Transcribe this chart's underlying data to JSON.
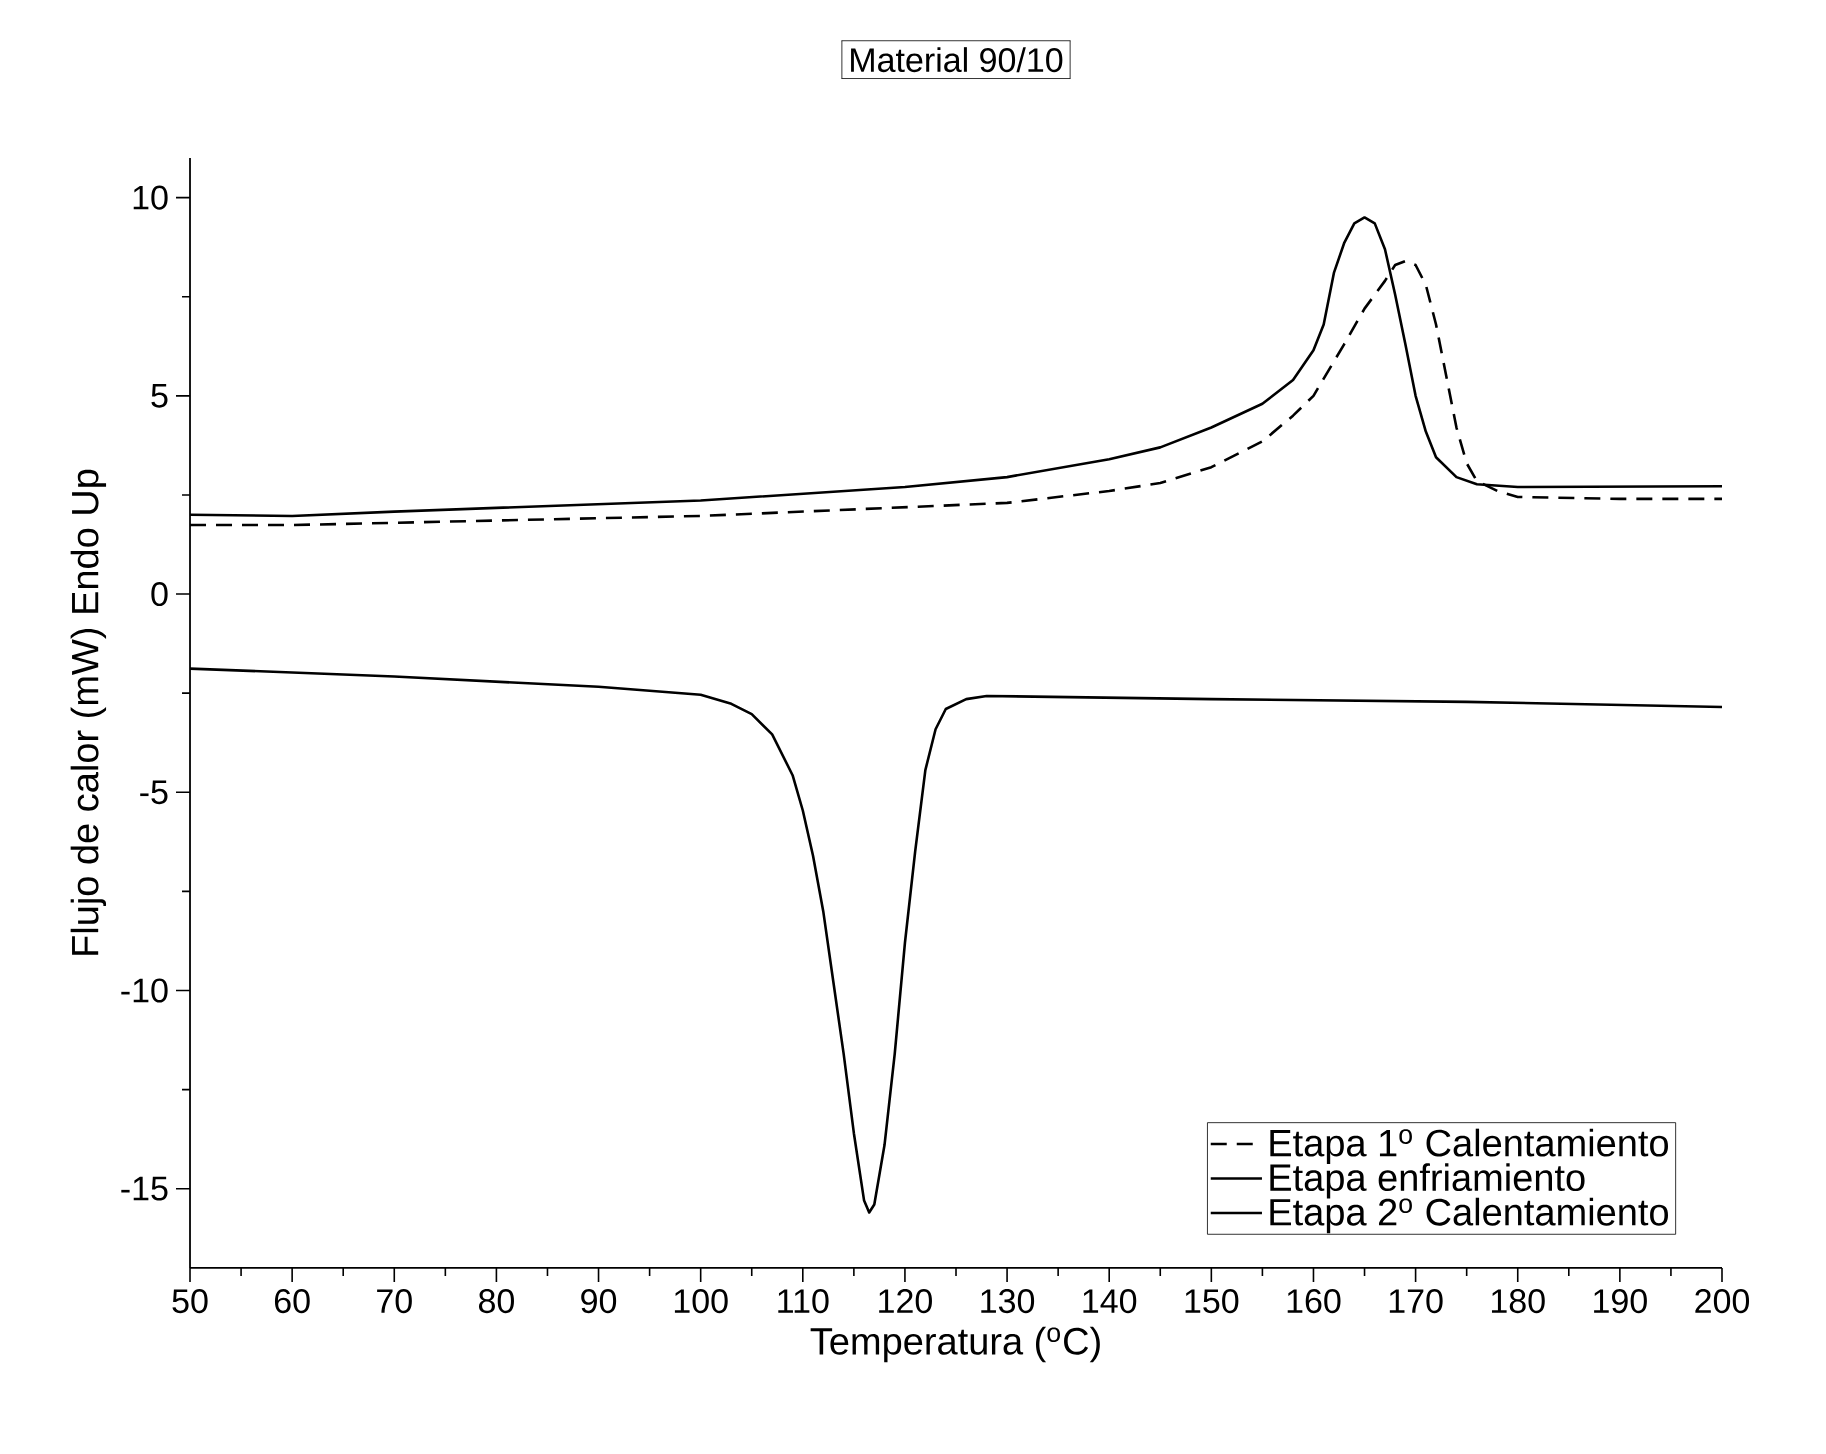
{
  "chart_data": {
    "type": "line",
    "title": "Material 90/10",
    "xlabel": "Temperatura ($^{o}$C)",
    "ylabel": "Flujo de calor (mW) Endo Up",
    "xlim": [
      50,
      200
    ],
    "ylim": [
      -17,
      11
    ],
    "xticks": [
      50,
      60,
      70,
      80,
      90,
      100,
      110,
      120,
      130,
      140,
      150,
      160,
      170,
      180,
      190,
      200
    ],
    "yticks": [
      -15,
      -10,
      -5,
      0,
      5,
      10
    ],
    "grid": false,
    "legend": "bottom right",
    "marker": "none",
    "series": [
      {
        "name": "Etapa 1$^{o}$ Calentamiento",
        "color": "#000000",
        "line_style": "dashed",
        "x": [
          50,
          60,
          100,
          130,
          140,
          145,
          150,
          155,
          158,
          160,
          163,
          165,
          167,
          168,
          169,
          170,
          171,
          172,
          173,
          174,
          175,
          176,
          178,
          180,
          190,
          200
        ],
        "values": [
          1.74,
          1.74,
          1.97,
          2.3,
          2.6,
          2.8,
          3.2,
          3.85,
          4.5,
          5.0,
          6.3,
          7.2,
          7.9,
          8.3,
          8.4,
          8.3,
          7.8,
          6.8,
          5.5,
          4.2,
          3.3,
          2.85,
          2.6,
          2.45,
          2.4,
          2.4
        ]
      },
      {
        "name": "Etapa enfriamiento",
        "color": "#000000",
        "line_style": "solid",
        "x": [
          50,
          70,
          90,
          100,
          103,
          105,
          107,
          109,
          110,
          111,
          112,
          113,
          114,
          115,
          116,
          116.5,
          117,
          118,
          119,
          120,
          121,
          122,
          123,
          124,
          126,
          128,
          150,
          175,
          200
        ],
        "values": [
          -1.88,
          -2.08,
          -2.34,
          -2.54,
          -2.77,
          -3.03,
          -3.54,
          -4.57,
          -5.46,
          -6.6,
          -8.0,
          -9.8,
          -11.6,
          -13.6,
          -15.3,
          -15.6,
          -15.4,
          -13.9,
          -11.6,
          -8.8,
          -6.5,
          -4.44,
          -3.41,
          -2.9,
          -2.65,
          -2.57,
          -2.65,
          -2.72,
          -2.85
        ]
      },
      {
        "name": "Etapa 2$^{o}$ Calentamiento",
        "color": "#000000",
        "line_style": "solid",
        "x": [
          50,
          60,
          70,
          100,
          120,
          130,
          140,
          145,
          150,
          155,
          158,
          160,
          161,
          162,
          163,
          164,
          165,
          166,
          167,
          168,
          169,
          170,
          171,
          172,
          174,
          176,
          180,
          200
        ],
        "values": [
          2.0,
          1.97,
          2.08,
          2.36,
          2.7,
          2.95,
          3.4,
          3.7,
          4.2,
          4.8,
          5.4,
          6.15,
          6.8,
          8.1,
          8.85,
          9.35,
          9.5,
          9.35,
          8.7,
          7.55,
          6.3,
          5.0,
          4.1,
          3.45,
          2.95,
          2.77,
          2.7,
          2.72
        ]
      }
    ]
  }
}
